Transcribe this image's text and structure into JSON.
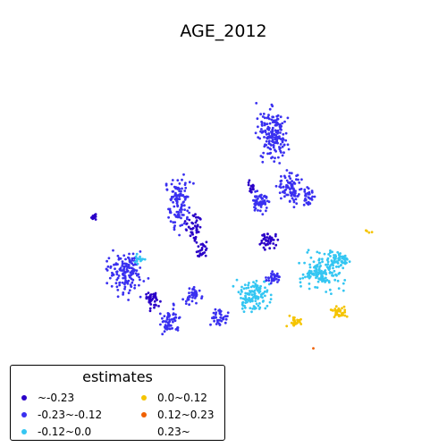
{
  "title": "AGE_2012",
  "legend": {
    "title": "estimates",
    "items": [
      {
        "label": "~-0.23",
        "color": "#2a00c8"
      },
      {
        "label": "-0.23~-0.12",
        "color": "#3a30f0"
      },
      {
        "label": "-0.12~0.0",
        "color": "#34c6f2"
      },
      {
        "label": "0.0~0.12",
        "color": "#f5c400"
      },
      {
        "label": "0.12~0.23",
        "color": "#f06000"
      },
      {
        "label": "0.23~",
        "color": "#ffffff"
      }
    ]
  }
}
